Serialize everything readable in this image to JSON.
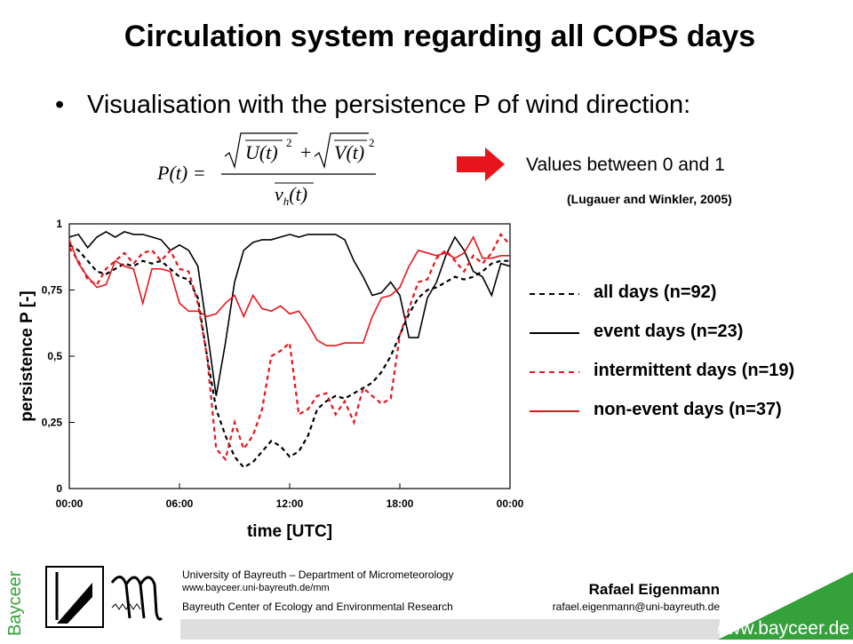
{
  "slide": {
    "title": "Circulation system regarding all COPS days",
    "bullet": "Visualisation with the persistence P of wind direction:",
    "values_note": "Values between 0 and 1",
    "citation": "(Lugauer and Winkler, 2005)",
    "arrow_color": "#e8141b"
  },
  "formula": {
    "lhs": "P(t) =",
    "numerator_u": "U(t)",
    "numerator_v": "V(t)",
    "denominator": "v",
    "denominator_sub": "h",
    "denominator_arg": "(t)",
    "exponent": "2",
    "plus": "+"
  },
  "chart_data": {
    "type": "line",
    "xlabel": "time [UTC]",
    "ylabel": "persistence P [-]",
    "xlim": [
      0,
      24
    ],
    "ylim": [
      0,
      1
    ],
    "xticks": [
      "00:00",
      "06:00",
      "12:00",
      "18:00",
      "00:00"
    ],
    "yticks": [
      "0",
      "0,25",
      "0,5",
      "0,75",
      "1"
    ],
    "x": [
      0,
      0.5,
      1,
      1.5,
      2,
      2.5,
      3,
      3.5,
      4,
      4.5,
      5,
      5.5,
      6,
      6.5,
      7,
      7.5,
      8,
      8.5,
      9,
      9.5,
      10,
      10.5,
      11,
      11.5,
      12,
      12.5,
      13,
      13.5,
      14,
      14.5,
      15,
      15.5,
      16,
      16.5,
      17,
      17.5,
      18,
      18.5,
      19,
      19.5,
      20,
      20.5,
      21,
      21.5,
      22,
      22.5,
      23,
      23.5,
      24
    ],
    "series": [
      {
        "name": "all days (n=92)",
        "color": "#000000",
        "dash": true,
        "values": [
          0.92,
          0.9,
          0.86,
          0.82,
          0.81,
          0.83,
          0.85,
          0.84,
          0.86,
          0.85,
          0.86,
          0.83,
          0.8,
          0.79,
          0.72,
          0.5,
          0.3,
          0.2,
          0.12,
          0.08,
          0.1,
          0.14,
          0.18,
          0.16,
          0.12,
          0.14,
          0.2,
          0.3,
          0.33,
          0.35,
          0.34,
          0.36,
          0.38,
          0.4,
          0.44,
          0.5,
          0.58,
          0.66,
          0.72,
          0.75,
          0.76,
          0.78,
          0.8,
          0.79,
          0.8,
          0.82,
          0.85,
          0.86,
          0.86
        ]
      },
      {
        "name": "event days (n=23)",
        "color": "#000000",
        "dash": false,
        "values": [
          0.95,
          0.96,
          0.91,
          0.95,
          0.97,
          0.95,
          0.97,
          0.96,
          0.96,
          0.95,
          0.94,
          0.9,
          0.92,
          0.9,
          0.84,
          0.6,
          0.35,
          0.55,
          0.78,
          0.9,
          0.93,
          0.94,
          0.94,
          0.95,
          0.96,
          0.95,
          0.96,
          0.96,
          0.96,
          0.96,
          0.94,
          0.86,
          0.8,
          0.73,
          0.74,
          0.78,
          0.73,
          0.57,
          0.57,
          0.72,
          0.78,
          0.88,
          0.95,
          0.9,
          0.82,
          0.8,
          0.73,
          0.85,
          0.84
        ]
      },
      {
        "name": "intermittent days (n=19)",
        "color": "#e8141b",
        "dash": true,
        "values": [
          0.91,
          0.86,
          0.79,
          0.77,
          0.83,
          0.86,
          0.89,
          0.85,
          0.89,
          0.9,
          0.86,
          0.9,
          0.83,
          0.82,
          0.7,
          0.5,
          0.15,
          0.11,
          0.25,
          0.15,
          0.2,
          0.3,
          0.5,
          0.52,
          0.55,
          0.28,
          0.3,
          0.35,
          0.36,
          0.28,
          0.33,
          0.25,
          0.38,
          0.35,
          0.32,
          0.34,
          0.58,
          0.68,
          0.78,
          0.79,
          0.87,
          0.9,
          0.86,
          0.82,
          0.88,
          0.85,
          0.89,
          0.96,
          0.92
        ]
      },
      {
        "name": "non-event days (n=37)",
        "color": "#e8141b",
        "dash": false,
        "values": [
          0.94,
          0.85,
          0.8,
          0.76,
          0.77,
          0.86,
          0.84,
          0.83,
          0.7,
          0.83,
          0.83,
          0.82,
          0.7,
          0.67,
          0.67,
          0.65,
          0.66,
          0.7,
          0.73,
          0.65,
          0.73,
          0.68,
          0.67,
          0.69,
          0.66,
          0.67,
          0.62,
          0.56,
          0.54,
          0.54,
          0.55,
          0.55,
          0.55,
          0.65,
          0.72,
          0.73,
          0.76,
          0.84,
          0.9,
          0.89,
          0.88,
          0.89,
          0.87,
          0.89,
          0.95,
          0.87,
          0.87,
          0.88,
          0.88
        ]
      }
    ]
  },
  "footer": {
    "institution": "University of Bayreuth – Department of Micrometeorology",
    "website_small": "www.bayceer.uni-bayreuth.de/mm",
    "center": "Bayreuth Center of Ecology and Environmental Research",
    "author": "Rafael Eigenmann",
    "email": "rafael.eigenmann@uni-bayreuth.de",
    "brand_url": "www.bayceer.de",
    "brand_vertical": "Bayceer",
    "brand_green": "#35a13a"
  }
}
